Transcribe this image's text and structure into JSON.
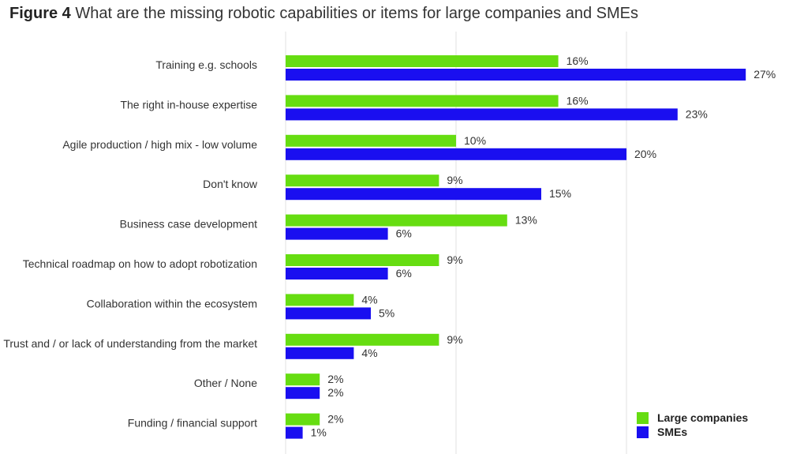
{
  "title": {
    "prefix": "Figure 4",
    "text": "What are the missing robotic capabilities or items for large companies and SMEs"
  },
  "colors": {
    "large": "#66dd11",
    "sme": "#1a0ff0",
    "grid": "#e2e2e2"
  },
  "chart_data": {
    "type": "bar",
    "orientation": "horizontal",
    "title": "What are the missing robotic capabilities or items for large companies and SMEs",
    "categories": [
      "Training e.g. schools",
      "The right in-house expertise",
      "Agile production / high mix - low volume",
      "Don't know",
      "Business case development",
      "Technical roadmap on how to adopt robotization",
      "Collaboration within the ecosystem",
      "Trust and / or lack of understanding from the market",
      "Other / None",
      "Funding / financial support"
    ],
    "series": [
      {
        "name": "Large companies",
        "color": "#66dd11",
        "values": [
          16,
          16,
          10,
          9,
          13,
          9,
          4,
          9,
          2,
          2
        ]
      },
      {
        "name": "SMEs",
        "color": "#1a0ff0",
        "values": [
          27,
          23,
          20,
          15,
          6,
          6,
          5,
          4,
          2,
          1
        ]
      }
    ],
    "value_suffix": "%",
    "xlim": [
      0,
      30
    ],
    "gridlines": [
      0,
      10,
      20,
      30
    ],
    "legend_position": "bottom-right",
    "xlabel": "",
    "ylabel": ""
  }
}
